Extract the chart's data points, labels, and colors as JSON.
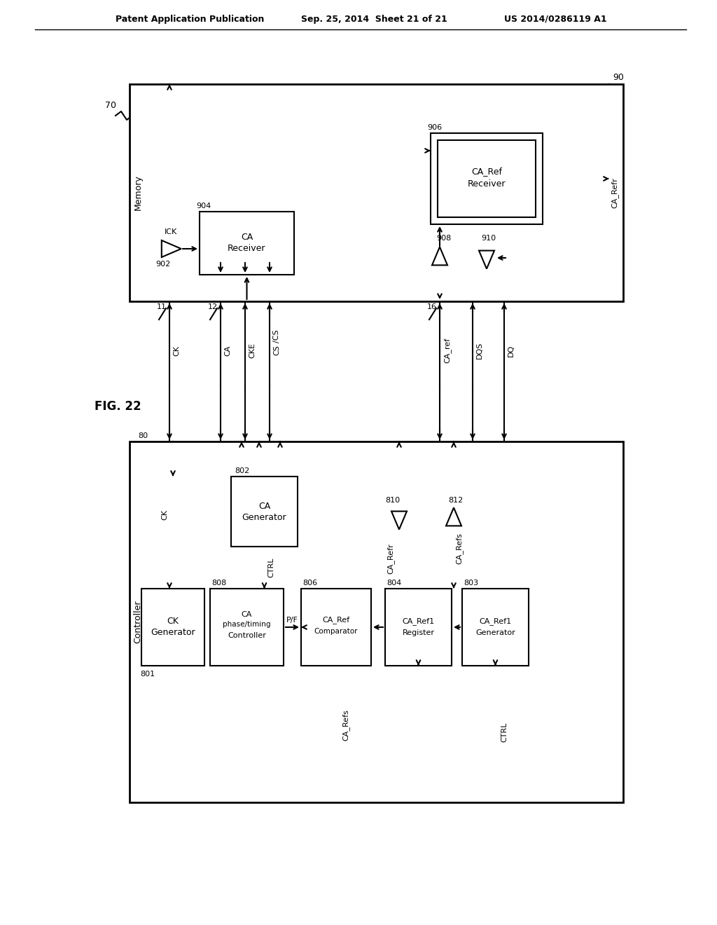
{
  "header_left": "Patent Application Publication",
  "header_center": "Sep. 25, 2014  Sheet 21 of 21",
  "header_right": "US 2014/0286119 A1",
  "bg_color": "#ffffff",
  "fig_label": "FIG. 22"
}
